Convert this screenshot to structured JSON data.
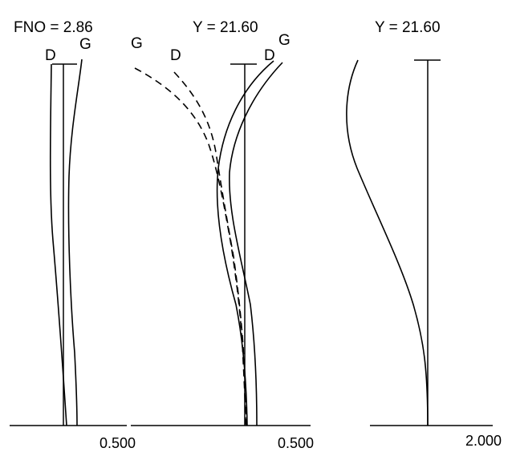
{
  "panels": [
    {
      "id": "spherical-aberration",
      "header": "FNO = 2.86",
      "scale_label": "0.500",
      "curve_labels": [
        "D",
        "G"
      ]
    },
    {
      "id": "astigmatism",
      "header": "Y = 21.60",
      "scale_label": "0.500",
      "curve_labels_left": [
        "G",
        "D"
      ],
      "curve_labels_right": [
        "D",
        "G"
      ]
    },
    {
      "id": "distortion",
      "header": "Y = 21.60",
      "scale_label": "2.000"
    }
  ]
}
